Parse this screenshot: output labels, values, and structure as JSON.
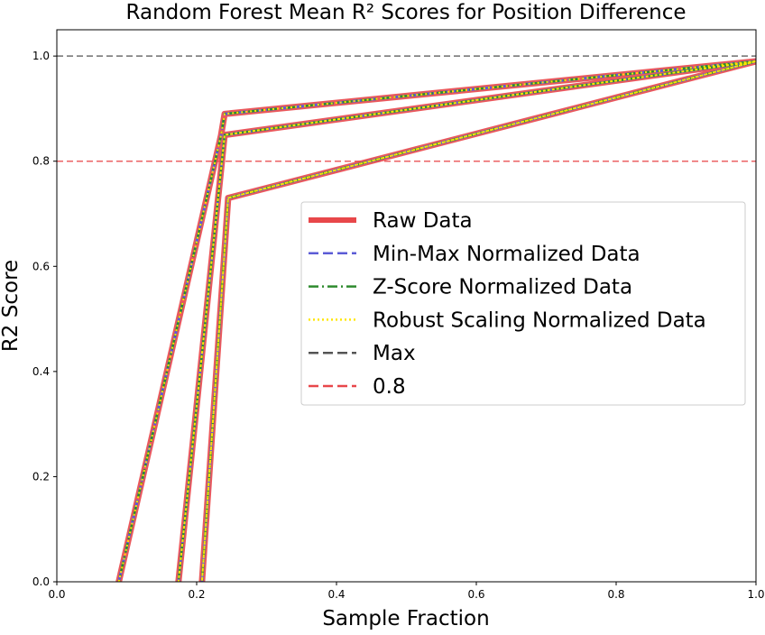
{
  "chart_data": {
    "type": "line",
    "title": "Random Forest Mean R² Scores for Position Difference",
    "xlabel": "Sample Fraction",
    "ylabel": "R2 Score",
    "xlim": [
      0.0,
      1.0
    ],
    "ylim": [
      0.0,
      1.05
    ],
    "xticks": [
      "0.0",
      "0.2",
      "0.4",
      "0.6",
      "0.8",
      "1.0"
    ],
    "yticks": [
      "0.0",
      "0.2",
      "0.4",
      "0.6",
      "0.8",
      "1.0"
    ],
    "grid": false,
    "legend_position": "center-right",
    "series": [
      {
        "name": "Raw Data",
        "color": "#e8474a",
        "style": "solid",
        "x": [
          0.08,
          0.235,
          0.24,
          1.0,
          0.24,
          0.17,
          0.24,
          1.0,
          0.245,
          0.205,
          0.245,
          1.0
        ],
        "y": [
          -0.05,
          0.85,
          0.89,
          0.99,
          0.85,
          -0.05,
          0.85,
          0.99,
          0.73,
          -0.05,
          0.73,
          0.99
        ]
      },
      {
        "name": "Min-Max Normalized Data",
        "color": "#5b5bd6",
        "style": "dashed",
        "x": [
          0.08,
          0.235,
          0.24,
          1.0,
          0.24,
          0.17,
          0.24,
          1.0,
          0.245,
          0.205,
          0.245,
          1.0
        ],
        "y": [
          -0.05,
          0.85,
          0.89,
          0.99,
          0.85,
          -0.05,
          0.85,
          0.99,
          0.73,
          -0.05,
          0.73,
          0.99
        ]
      },
      {
        "name": "Z-Score Normalized Data",
        "color": "#2e8b2e",
        "style": "dashdot",
        "x": [
          0.08,
          0.235,
          0.24,
          1.0,
          0.24,
          0.17,
          0.24,
          1.0,
          0.245,
          0.205,
          0.245,
          1.0
        ],
        "y": [
          -0.05,
          0.85,
          0.89,
          0.99,
          0.85,
          -0.05,
          0.85,
          0.99,
          0.73,
          -0.05,
          0.73,
          0.99
        ]
      },
      {
        "name": "Robust Scaling Normalized Data",
        "color": "#ffe600",
        "style": "dotted",
        "x": [
          0.08,
          0.235,
          0.24,
          1.0,
          0.24,
          0.17,
          0.24,
          1.0,
          0.245,
          0.205,
          0.245,
          1.0
        ],
        "y": [
          -0.05,
          0.85,
          0.89,
          0.99,
          0.85,
          -0.05,
          0.85,
          0.99,
          0.73,
          -0.05,
          0.73,
          0.99
        ]
      }
    ],
    "reference_lines": [
      {
        "name": "Max",
        "y": 1.0,
        "color": "#555555",
        "style": "dashed"
      },
      {
        "name": "0.8",
        "y": 0.8,
        "color": "#e8474a",
        "style": "dashed"
      }
    ],
    "legend": [
      {
        "label": "Raw Data",
        "color": "#e8474a",
        "style": "solid-thick"
      },
      {
        "label": "Min-Max Normalized Data",
        "color": "#5b5bd6",
        "style": "dashed"
      },
      {
        "label": "Z-Score Normalized Data",
        "color": "#2e8b2e",
        "style": "dashdot"
      },
      {
        "label": "Robust Scaling Normalized Data",
        "color": "#ffe600",
        "style": "dotted"
      },
      {
        "label": "Max",
        "color": "#555555",
        "style": "dashed"
      },
      {
        "label": "0.8",
        "color": "#e8474a",
        "style": "dashed"
      }
    ]
  }
}
